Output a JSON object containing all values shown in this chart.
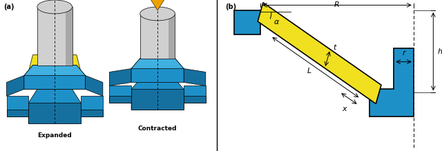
{
  "fig_width": 6.4,
  "fig_height": 2.19,
  "dpi": 100,
  "bg_color": "#ffffff",
  "blue_color": "#1e90c8",
  "blue_dark": "#1570a0",
  "blue_light": "#40b0e0",
  "yellow_color": "#f0e020",
  "gray_light": "#d0d0d0",
  "gray_mid": "#a8a8a8",
  "gray_dark": "#787878",
  "orange": "#f0a000",
  "black": "#000000",
  "label_a": "(a)",
  "label_b": "(b)",
  "text_expanded": "Expanded",
  "text_contracted": "Contracted"
}
